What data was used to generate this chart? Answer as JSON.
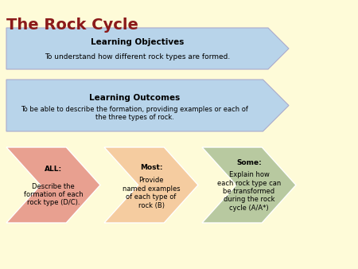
{
  "title": "The Rock Cycle",
  "title_color": "#8B1A1A",
  "title_fontsize": 14,
  "bg_color": "#FEFBD8",
  "arrow1_color": "#B8D4EA",
  "arrow2_color": "#B8D4EA",
  "arrow_all_color": "#E8A090",
  "arrow_most_color": "#F5CCA0",
  "arrow_some_color": "#B8C9A0",
  "box1_title": "Learning Objectives",
  "box1_text": "To understand how different rock types are formed.",
  "box2_title": "Learning Outcomes",
  "box2_text": "To be able to describe the formation, providing examples or each of\nthe three types of rock.",
  "all_bold": "ALL:",
  "all_rest": " Describe the\nformation of each\nrock type (D/C).",
  "most_bold": "Most:",
  "most_rest": " Provide\nnamed examples\nof each type of\nrock (B)",
  "some_bold": "Some:",
  "some_rest": " Explain how\neach rock type can\nbe transformed\nduring the rock\ncycle (A/A*)"
}
